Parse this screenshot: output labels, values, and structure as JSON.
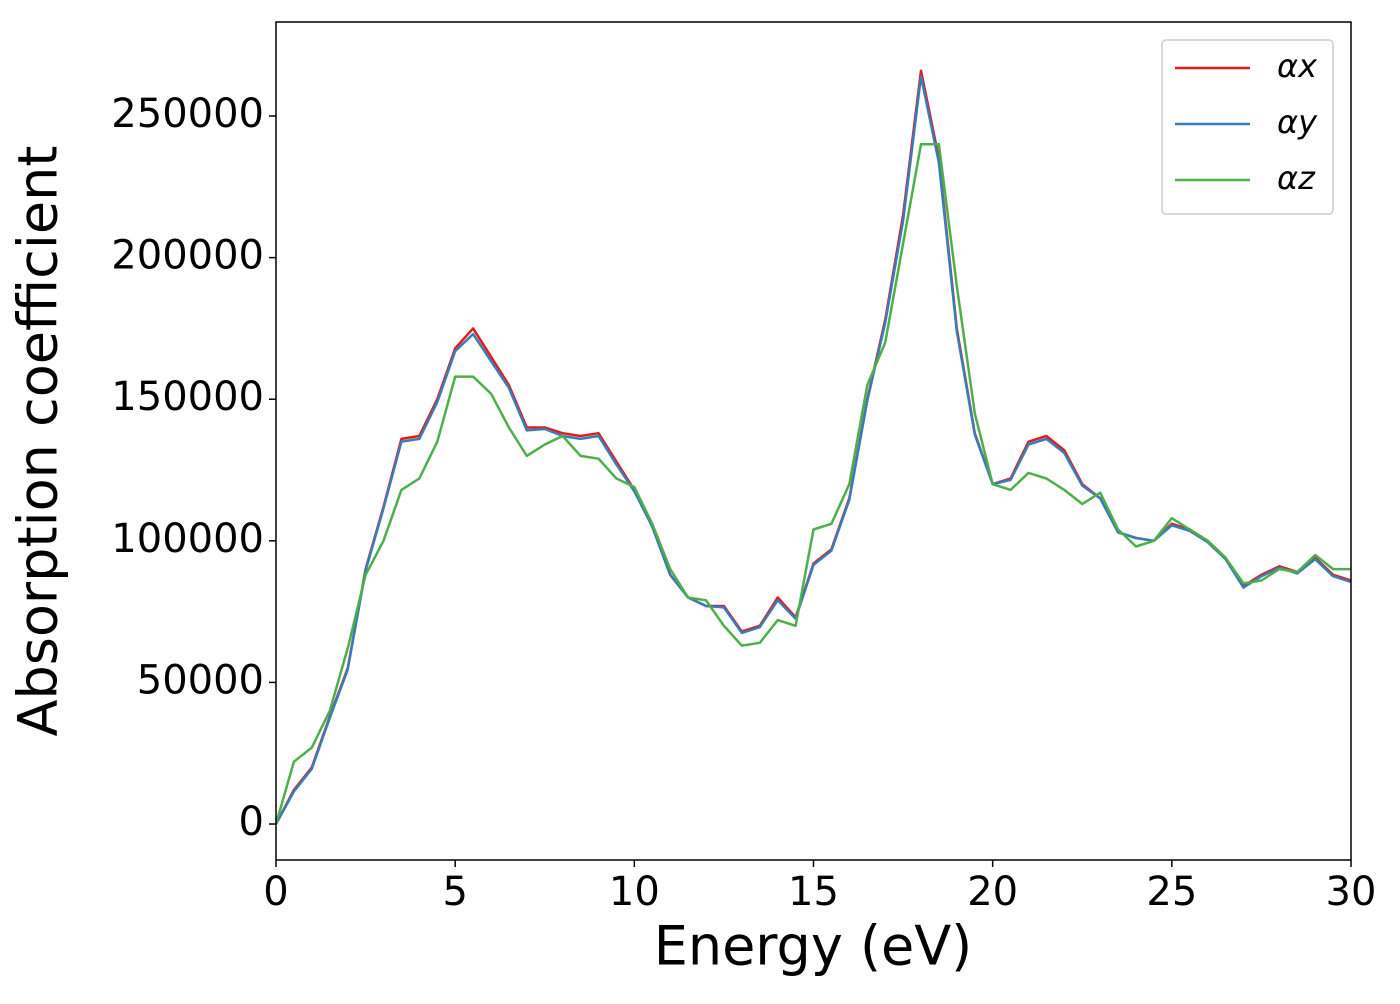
{
  "chart_data": {
    "type": "line",
    "xlabel": "Energy (eV)",
    "ylabel": "Absorption coefficient",
    "x": [
      0,
      0.5,
      1,
      1.5,
      2,
      2.5,
      3,
      3.5,
      4,
      4.5,
      5,
      5.5,
      6,
      6.5,
      7,
      7.5,
      8,
      8.5,
      9,
      9.5,
      10,
      10.5,
      11,
      11.5,
      12,
      12.5,
      13,
      13.5,
      14,
      14.5,
      15,
      15.5,
      16,
      16.5,
      17,
      17.5,
      18,
      18.5,
      19,
      19.5,
      20,
      20.5,
      21,
      21.5,
      22,
      22.5,
      23,
      23.5,
      24,
      24.5,
      25,
      25.5,
      26,
      26.5,
      27,
      27.5,
      28,
      28.5,
      29,
      29.5,
      30
    ],
    "series": [
      {
        "name": "αx",
        "color": "#e41a1c",
        "values": [
          0,
          12000,
          20000,
          38000,
          55000,
          90000,
          112000,
          136000,
          137000,
          150000,
          168000,
          175000,
          165000,
          155000,
          140000,
          140000,
          138000,
          137000,
          138000,
          128000,
          118000,
          105000,
          88000,
          80000,
          77000,
          77000,
          68000,
          70000,
          80000,
          73000,
          92000,
          97000,
          115000,
          150000,
          178000,
          215000,
          266000,
          235000,
          175000,
          138000,
          120000,
          122000,
          135000,
          137000,
          132000,
          120000,
          115000,
          103000,
          101000,
          100000,
          106000,
          104000,
          100000,
          94000,
          84000,
          88000,
          91000,
          89000,
          94000,
          88000,
          86000
        ]
      },
      {
        "name": "αy",
        "color": "#377eb8",
        "values": [
          0,
          11500,
          19500,
          37500,
          54500,
          89500,
          111500,
          135000,
          136000,
          149000,
          167000,
          173000,
          163500,
          154000,
          139000,
          139500,
          137000,
          136000,
          137000,
          127000,
          117500,
          105000,
          88000,
          80000,
          77000,
          76500,
          67500,
          69500,
          79000,
          72500,
          91500,
          96500,
          114500,
          149500,
          177000,
          213000,
          264000,
          233500,
          174000,
          137500,
          120000,
          121500,
          134000,
          136000,
          131000,
          119500,
          115000,
          103000,
          101000,
          100000,
          105500,
          103500,
          99500,
          93500,
          83500,
          87500,
          90500,
          88500,
          93500,
          87500,
          85500
        ]
      },
      {
        "name": "αz",
        "color": "#4daf4a",
        "values": [
          0,
          22000,
          27000,
          40000,
          62000,
          88000,
          100000,
          118000,
          122000,
          135000,
          158000,
          158000,
          152000,
          140000,
          130000,
          134000,
          137000,
          130000,
          129000,
          122000,
          119000,
          106000,
          90000,
          80000,
          79000,
          70000,
          63000,
          64000,
          72000,
          70000,
          104000,
          106000,
          120000,
          155000,
          170000,
          205000,
          240000,
          240000,
          190000,
          145000,
          120000,
          118000,
          124000,
          122000,
          118000,
          113000,
          117000,
          104000,
          98000,
          100000,
          108000,
          104000,
          100000,
          94000,
          85000,
          86000,
          90000,
          89000,
          95000,
          90000,
          90000
        ]
      }
    ],
    "xlim": [
      0,
      30
    ],
    "xticks": [
      0,
      5,
      10,
      15,
      20,
      25,
      30
    ],
    "ylim": [
      -12700,
      283200
    ],
    "yticks": [
      0,
      50000,
      100000,
      150000,
      200000,
      250000
    ],
    "grid": false,
    "legend": "upper right"
  }
}
